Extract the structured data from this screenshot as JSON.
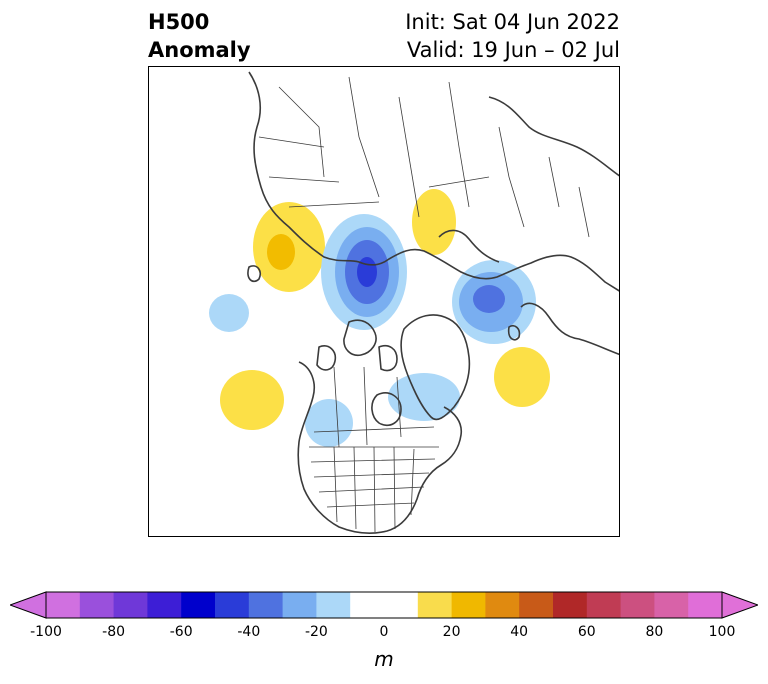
{
  "title": {
    "left_line1": "H500",
    "left_line2": "Anomaly",
    "right_line1": "Init: Sat 04 Jun 2022",
    "right_line2": "Valid: 19 Jun – 02 Jul"
  },
  "map": {
    "projection": "north-polar-stereographic",
    "features": [
      {
        "name": "positive-anomaly-west-siberia",
        "sign": "positive"
      },
      {
        "name": "negative-anomaly-central-siberia",
        "sign": "negative"
      },
      {
        "name": "positive-anomaly-beaufort-alaska",
        "sign": "positive"
      },
      {
        "name": "negative-anomaly-europe-scandinavia",
        "sign": "negative"
      },
      {
        "name": "positive-anomaly-north-atlantic",
        "sign": "positive"
      },
      {
        "name": "negative-anomaly-eastern-canada",
        "sign": "negative"
      },
      {
        "name": "negative-anomaly-northwest-us",
        "sign": "negative"
      },
      {
        "name": "positive-anomaly-northeast-pacific",
        "sign": "positive"
      },
      {
        "name": "negative-anomaly-west-pacific",
        "sign": "negative"
      }
    ]
  },
  "colorbar": {
    "unit": "m",
    "ticks": [
      "-100",
      "-80",
      "-60",
      "-40",
      "-20",
      "0",
      "20",
      "40",
      "60",
      "80",
      "100"
    ],
    "colors": [
      "#d070e0",
      "#9a50dc",
      "#6f38d8",
      "#3d1ed6",
      "#0000cc",
      "#2a3cd8",
      "#4f72e0",
      "#79aef0",
      "#acd8f8",
      "#ffffff",
      "#ffffff",
      "#f9dc4c",
      "#f0b800",
      "#e08a10",
      "#c85a18",
      "#b02828",
      "#c03c54",
      "#cc5080",
      "#d862a8",
      "#e06ed8"
    ],
    "extend_low": "#d070e0",
    "extend_high": "#e070d8",
    "anomaly_colors": {
      "pos1": "#fce047",
      "pos2": "#f2bc00",
      "neg1": "#acd8f8",
      "neg2": "#79aef0",
      "neg3": "#4f72e0",
      "neg4": "#2a3cd8"
    }
  }
}
